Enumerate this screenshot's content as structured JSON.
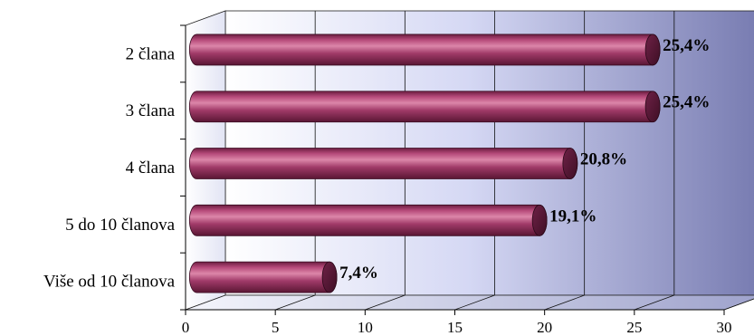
{
  "chart_data": {
    "type": "bar",
    "orientation": "horizontal",
    "categories": [
      "2 člana",
      "3 člana",
      "4 člana",
      "5 do 10 članova",
      "Više od 10 članova"
    ],
    "values": [
      25.4,
      25.4,
      20.8,
      19.1,
      7.4
    ],
    "data_labels": [
      "25,4%",
      "25,4%",
      "20,8%",
      "19,1%",
      "7,4%"
    ],
    "xlim": [
      0,
      30
    ],
    "x_ticks": [
      "0",
      "5",
      "10",
      "15",
      "20",
      "25",
      "30"
    ],
    "title": "",
    "xlabel": "",
    "ylabel": "",
    "grid": true,
    "legend": "none",
    "bar_color": "#8e2a55",
    "bar_highlight_color": "#d9789f",
    "plot_background": [
      "#ffffff",
      "#c4c8ec",
      "#7a7eb0"
    ]
  }
}
